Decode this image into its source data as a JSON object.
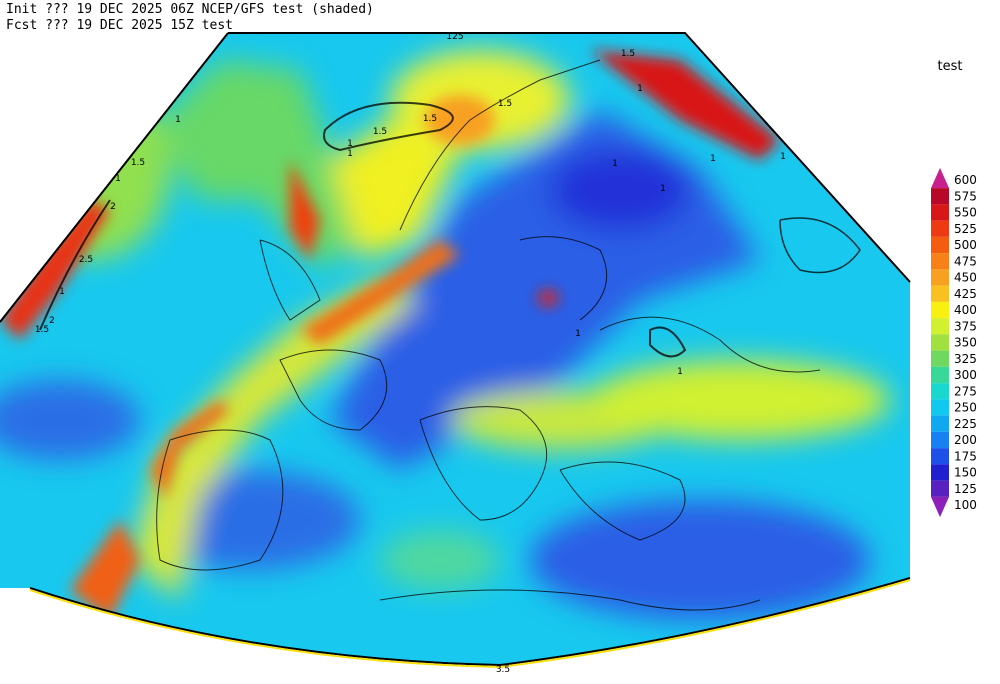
{
  "header": {
    "line1": "Init  ??? 19 DEC 2025 06Z  NCEP/GFS test (shaded)",
    "line2": "Fcst ??? 19 DEC 2025 15Z  test"
  },
  "legend": {
    "title": "test",
    "levels": [
      600,
      575,
      550,
      525,
      500,
      475,
      450,
      425,
      400,
      375,
      350,
      325,
      300,
      275,
      250,
      225,
      200,
      175,
      150,
      125,
      100
    ],
    "colors": [
      "#c8208c",
      "#b80828",
      "#d81818",
      "#ee3a12",
      "#f45c10",
      "#f88018",
      "#f8a020",
      "#f8c020",
      "#f8f010",
      "#d0f030",
      "#a0e040",
      "#70d860",
      "#38d898",
      "#18d8d0",
      "#10c8f0",
      "#10a8f0",
      "#1880f0",
      "#1c50e8",
      "#2020d0",
      "#5820c0",
      "#8c20b8"
    ]
  },
  "contour_labels": [
    "125",
    "1.5",
    "1.5",
    "1",
    "1",
    "1.5",
    "1.5",
    "1",
    "1",
    "1",
    "1",
    "1",
    "1",
    "1.5",
    "1",
    "2",
    "2.5",
    "1",
    "2",
    "1.5",
    "1",
    "1",
    "3.5"
  ]
}
